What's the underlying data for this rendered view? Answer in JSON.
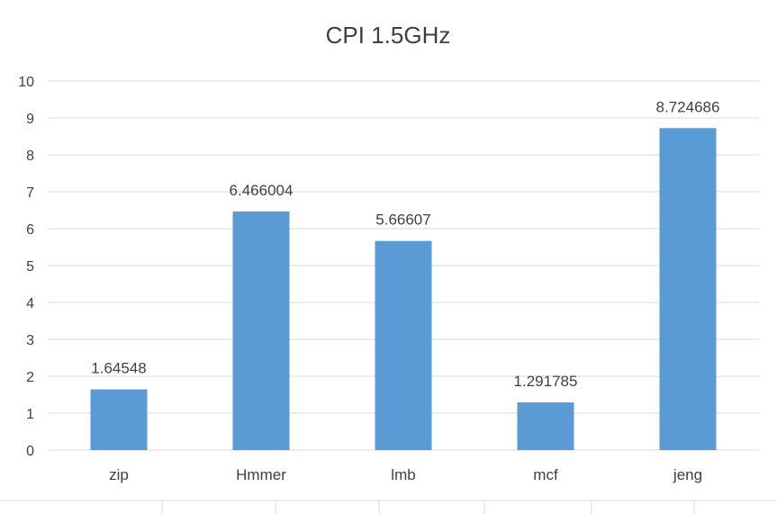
{
  "chart_data": {
    "type": "bar",
    "title": "CPI 1.5GHz",
    "xlabel": "",
    "ylabel": "",
    "categories": [
      "zip",
      "Hmmer",
      "lmb",
      "mcf",
      "jeng"
    ],
    "series": [
      {
        "values": [
          1.64548,
          6.466004,
          5.66607,
          1.291785,
          8.724686
        ],
        "value_labels": [
          "1.64548",
          "6.466004",
          "5.66607",
          "1.291785",
          "8.724686"
        ],
        "color": "#5b9bd5"
      }
    ],
    "ylim": [
      0,
      10
    ],
    "yticks": [
      0,
      1,
      2,
      3,
      4,
      5,
      6,
      7,
      8,
      9,
      10
    ],
    "grid": true,
    "legend": "none"
  }
}
